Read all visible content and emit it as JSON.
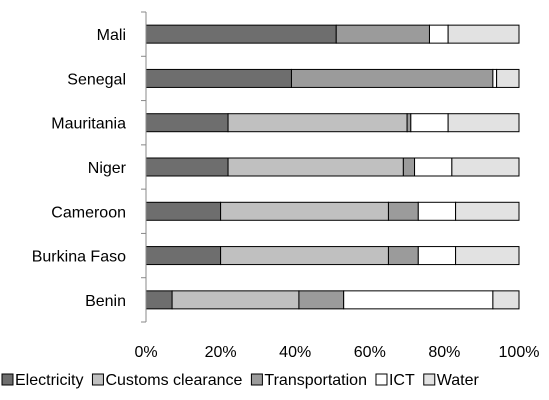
{
  "chart_data": {
    "type": "bar",
    "orientation": "horizontal",
    "stacked": true,
    "percent": true,
    "title": "",
    "xlabel": "",
    "ylabel": "",
    "xlim": [
      0,
      100
    ],
    "grid": false,
    "legend_position": "bottom",
    "categories": [
      "Mali",
      "Senegal",
      "Mauritania",
      "Niger",
      "Cameroon",
      "Burkina Faso",
      "Benin"
    ],
    "x_tick_labels": [
      "0%",
      "20%",
      "40%",
      "60%",
      "80%",
      "100%"
    ],
    "series": [
      {
        "name": "Electricity",
        "color": "#6e6e6e",
        "values": [
          51,
          39,
          22,
          22,
          20,
          20,
          7
        ]
      },
      {
        "name": "Customs clearance",
        "color": "#c0c0c0",
        "values": [
          0,
          0,
          48,
          47,
          45,
          45,
          34
        ]
      },
      {
        "name": "Transportation",
        "color": "#9b9b9b",
        "values": [
          25,
          54,
          1,
          3,
          8,
          8,
          12
        ]
      },
      {
        "name": "ICT",
        "color": "#ffffff",
        "values": [
          5,
          1,
          10,
          10,
          10,
          10,
          40
        ]
      },
      {
        "name": "Water",
        "color": "#e2e2e2",
        "values": [
          19,
          6,
          19,
          18,
          17,
          17,
          7
        ]
      }
    ]
  }
}
